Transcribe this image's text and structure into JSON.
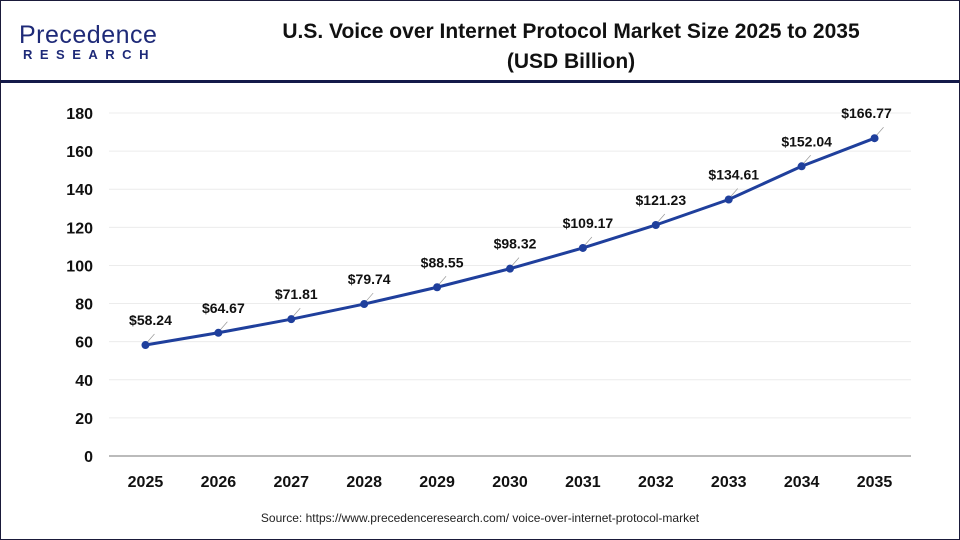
{
  "logo": {
    "line1": "Precedence",
    "line2": "RESEARCH"
  },
  "title_line1": "U.S. Voice over Internet Protocol Market Size 2025 to 2035",
  "title_line2": "(USD Billion)",
  "source": "Source: https://www.precedenceresearch.com/ voice-over-internet-protocol-market",
  "chart_data": {
    "type": "line",
    "title": "U.S. Voice over Internet Protocol Market Size 2025 to 2035 (USD Billion)",
    "categories": [
      "2025",
      "2026",
      "2027",
      "2028",
      "2029",
      "2030",
      "2031",
      "2032",
      "2033",
      "2034",
      "2035"
    ],
    "values": [
      58.24,
      64.67,
      71.81,
      79.74,
      88.55,
      98.32,
      109.17,
      121.23,
      134.61,
      152.04,
      166.77
    ],
    "data_labels": [
      "$58.24",
      "$64.67",
      "$71.81",
      "$79.74",
      "$88.55",
      "$98.32",
      "$109.17",
      "$121.23",
      "$134.61",
      "$152.04",
      "$166.77"
    ],
    "ylim": [
      0,
      180
    ],
    "yticks": [
      0,
      20,
      40,
      60,
      80,
      100,
      120,
      140,
      160,
      180
    ],
    "grid": true,
    "line_color": "#1f3f9c",
    "xlabel": "",
    "ylabel": ""
  }
}
